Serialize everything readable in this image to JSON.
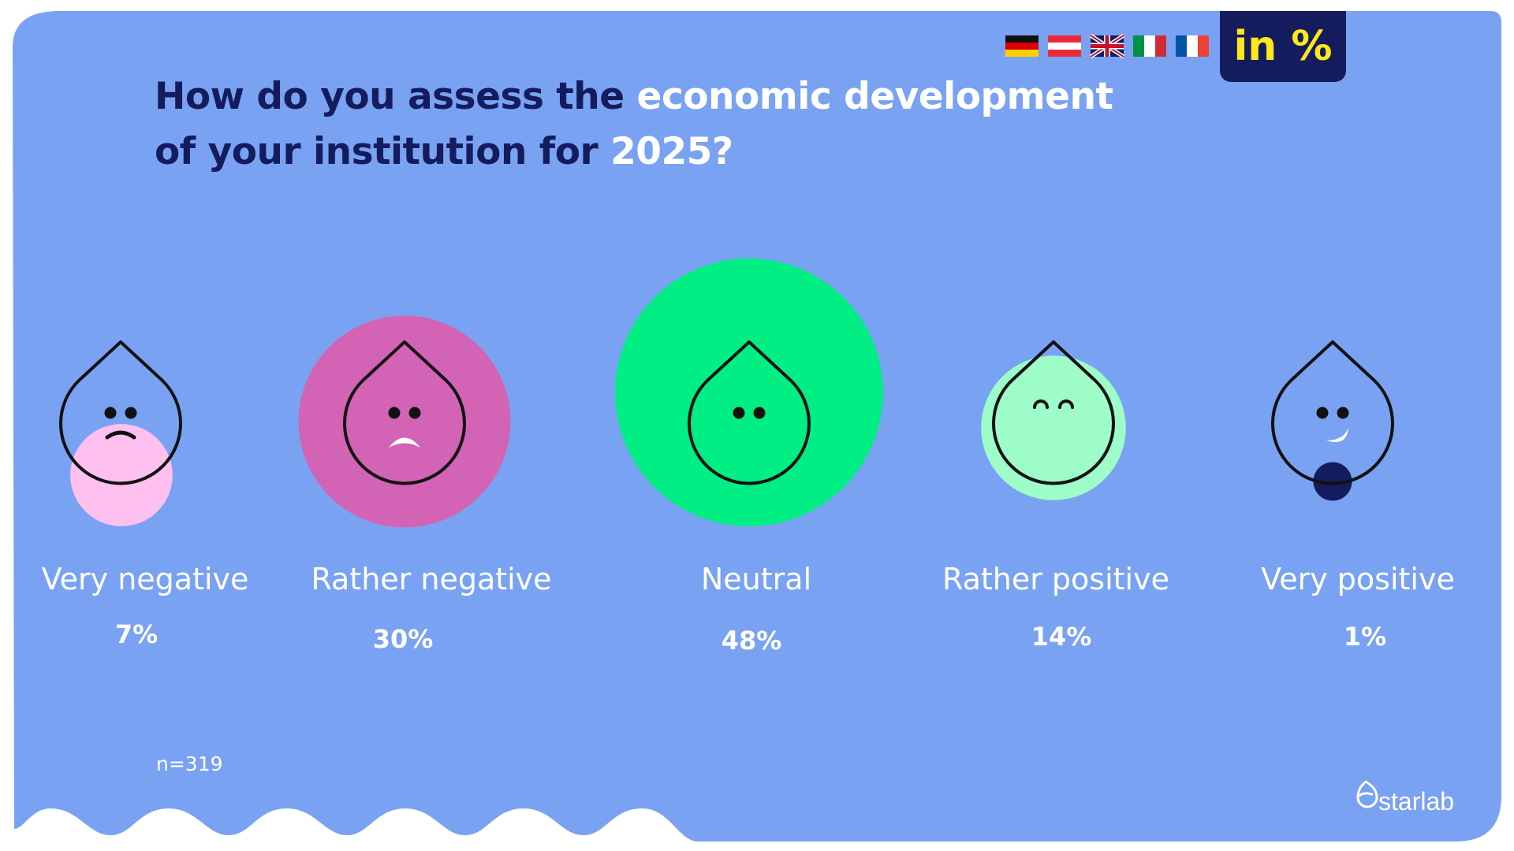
{
  "title": {
    "part1": "How do you assess the ",
    "part2": "economic development",
    "part3": "of your institution for ",
    "part4": "2025?"
  },
  "unit_badge": "in %",
  "sample_size": "n=319",
  "brand": "starlab",
  "flags": [
    "de-flag-icon",
    "at-flag-icon",
    "uk-flag-icon",
    "it-flag-icon",
    "fr-flag-icon"
  ],
  "colors": {
    "background": "#7aa2f2",
    "dark": "#141c5e",
    "accent_text": "#ffe81a",
    "very_negative": "#fdc0ef",
    "rather_negative": "#d363b4",
    "neutral": "#00ee83",
    "rather_positive": "#9dfcc8",
    "very_positive": "#141c5e"
  },
  "chart_data": {
    "type": "bubble",
    "title": "How do you assess the economic development of your institution for 2025?",
    "unit": "%",
    "categories": [
      "Very negative",
      "Rather negative",
      "Neutral",
      "Rather positive",
      "Very positive"
    ],
    "values": [
      7,
      30,
      48,
      14,
      1
    ],
    "value_labels": [
      "7%",
      "30%",
      "48%",
      "14%",
      "1%"
    ],
    "faces": [
      "worried",
      "sad",
      "neutral",
      "happy",
      "smiling"
    ],
    "icons": [
      "worried-drop-icon",
      "sad-drop-icon",
      "neutral-drop-icon",
      "happy-drop-icon",
      "smiling-drop-icon"
    ]
  }
}
